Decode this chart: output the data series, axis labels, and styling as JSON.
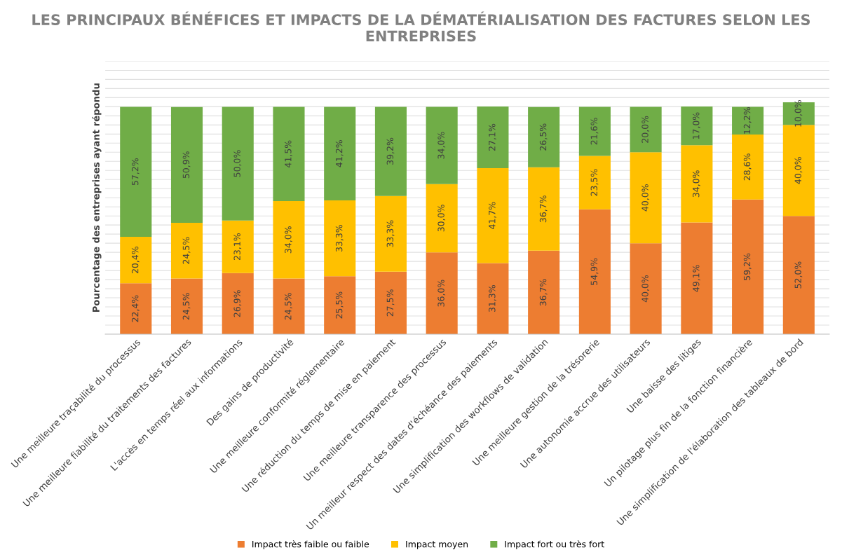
{
  "chart_data": {
    "type": "bar",
    "stacked": true,
    "title": "LES PRINCIPAUX BÉNÉFICES ET IMPACTS DE LA DÉMATÉRIALISATION DES FACTURES SELON LES ENTREPRISES",
    "ylabel": "Pourcentage des entreprises ayant répondu",
    "categories": [
      "Une meilleure traçabilité du processus",
      "Une meilleure fiabilité du traitements des factures",
      "L'accès en temps réel aux informations",
      "Des gains de productivité",
      "Une meilleure conformité réglementaire",
      "Une réduction du temps de mise en paiement",
      "Une meilleure transparence des processus",
      "Un meilleur respect des dates d'échéance des paiements",
      "Une simplification des workflows de validation",
      "Une meilleure gestion de la trésorerie",
      "Une autonomie accrue des utilisateurs",
      "Une baisse des litiges",
      "Un pilotage plus fin de la fonction financière",
      "Une simplification de l'élaboration des tableaux de bord"
    ],
    "series": [
      {
        "name": "Impact très faible ou faible",
        "color": "#ed7d31",
        "values": [
          22.4,
          24.5,
          26.9,
          24.5,
          25.5,
          27.5,
          36.0,
          31.3,
          36.7,
          54.9,
          40.0,
          49.1,
          59.2,
          52.0
        ],
        "value_labels": [
          "22,4%",
          "24,5%",
          "26,9%",
          "24,5%",
          "25,5%",
          "27,5%",
          "36,0%",
          "31,3%",
          "36,7%",
          "54,9%",
          "40,0%",
          "49,1%",
          "59,2%",
          "52,0%"
        ]
      },
      {
        "name": "Impact moyen",
        "color": "#ffc000",
        "values": [
          20.4,
          24.5,
          23.1,
          34.0,
          33.3,
          33.3,
          30.0,
          41.7,
          36.7,
          23.5,
          40.0,
          34.0,
          28.6,
          40.0
        ],
        "value_labels": [
          "20,4%",
          "24,5%",
          "23,1%",
          "34,0%",
          "33,3%",
          "33,3%",
          "30,0%",
          "41,7%",
          "36,7%",
          "23,5%",
          "40,0%",
          "34,0%",
          "28,6%",
          "40,0%"
        ]
      },
      {
        "name": "Impact fort ou très fort",
        "color": "#70ad47",
        "values": [
          57.2,
          50.9,
          50.0,
          41.5,
          41.2,
          39.2,
          34.0,
          27.1,
          26.5,
          21.6,
          20.0,
          17.0,
          12.2,
          10.0
        ],
        "value_labels": [
          "57,2%",
          "50,9%",
          "50,0%",
          "41,5%",
          "41,2%",
          "39,2%",
          "34,0%",
          "27,1%",
          "26,5%",
          "21,6%",
          "20,0%",
          "17,0%",
          "12,2%",
          "10,0%"
        ]
      }
    ],
    "ylim": [
      0,
      120
    ],
    "yticks": [
      {
        "value": 0,
        "label": null
      },
      {
        "value": 4,
        "label": null
      },
      {
        "value": 8,
        "label": null
      },
      {
        "value": 12,
        "label": null
      },
      {
        "value": 16,
        "label": null
      },
      {
        "value": 20,
        "label": null
      },
      {
        "value": 24,
        "label": null
      },
      {
        "value": 28,
        "label": null
      },
      {
        "value": 32,
        "label": null
      },
      {
        "value": 36,
        "label": null
      },
      {
        "value": 40,
        "label": null
      },
      {
        "value": 44,
        "label": null
      },
      {
        "value": 48,
        "label": null
      },
      {
        "value": 52,
        "label": null
      },
      {
        "value": 56,
        "label": null
      },
      {
        "value": 60,
        "label": null
      },
      {
        "value": 64,
        "label": null
      },
      {
        "value": 68,
        "label": null
      },
      {
        "value": 72,
        "label": null
      },
      {
        "value": 76,
        "label": null
      },
      {
        "value": 80,
        "label": null
      },
      {
        "value": 84,
        "label": null
      },
      {
        "value": 88,
        "label": null
      },
      {
        "value": 92,
        "label": null
      },
      {
        "value": 96,
        "label": null
      },
      {
        "value": 100,
        "label": null
      },
      {
        "value": 104,
        "label": null
      },
      {
        "value": 108,
        "label": null
      },
      {
        "value": 112,
        "label": null
      },
      {
        "value": 116,
        "label": null
      },
      {
        "value": 120,
        "label": null
      }
    ],
    "tick_labels": "x",
    "grid": "y",
    "legend": "bottom"
  }
}
